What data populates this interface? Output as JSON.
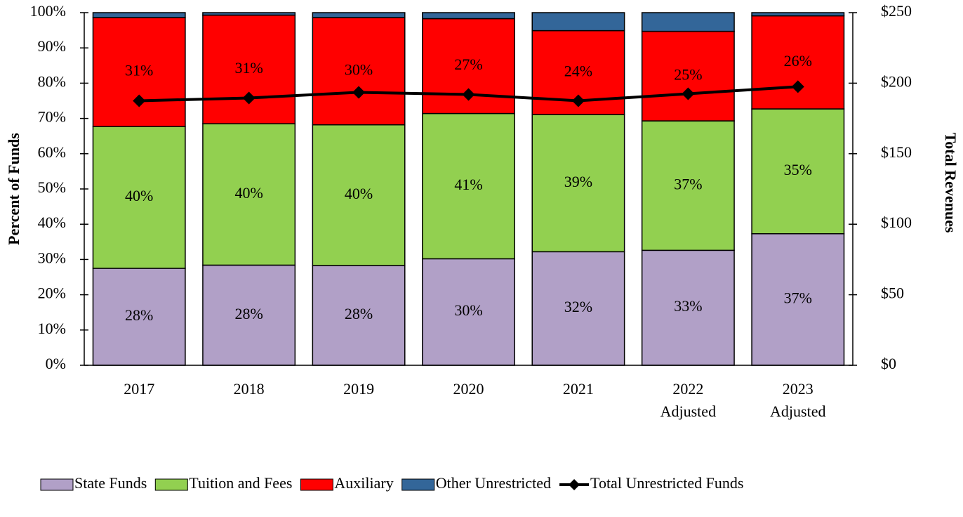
{
  "chart_data": {
    "type": "stacked_bar_line",
    "categories": [
      [
        "2017"
      ],
      [
        "2018"
      ],
      [
        "2019"
      ],
      [
        "2020"
      ],
      [
        "2021"
      ],
      [
        "2022",
        "Adjusted"
      ],
      [
        "2023",
        "Adjusted"
      ]
    ],
    "ylabel": "Percent of Funds",
    "y2label": "Total Revenues",
    "ylim": [
      0,
      100
    ],
    "yticks": [
      {
        "value": 0,
        "label": "0%"
      },
      {
        "value": 10,
        "label": "10%"
      },
      {
        "value": 20,
        "label": "20%"
      },
      {
        "value": 30,
        "label": "30%"
      },
      {
        "value": 40,
        "label": "40%"
      },
      {
        "value": 50,
        "label": "50%"
      },
      {
        "value": 60,
        "label": "60%"
      },
      {
        "value": 70,
        "label": "70%"
      },
      {
        "value": 80,
        "label": "80%"
      },
      {
        "value": 90,
        "label": "90%"
      },
      {
        "value": 100,
        "label": "100%"
      }
    ],
    "y2lim": [
      0,
      250
    ],
    "y2ticks": [
      {
        "value": 0,
        "label": "$0"
      },
      {
        "value": 50,
        "label": "$50"
      },
      {
        "value": 100,
        "label": "$100"
      },
      {
        "value": 150,
        "label": "$150"
      },
      {
        "value": 200,
        "label": "$200"
      },
      {
        "value": 250,
        "label": "$250"
      }
    ],
    "series": [
      {
        "name": "State Funds",
        "color": "#b1a0c7",
        "values": [
          27.5,
          28.4,
          28.3,
          30.2,
          32.2,
          32.6,
          37.3
        ],
        "value_labels": [
          "28%",
          "28%",
          "28%",
          "30%",
          "32%",
          "33%",
          "37%"
        ]
      },
      {
        "name": "Tuition and Fees",
        "color": "#92d050",
        "values": [
          40.2,
          40.1,
          39.9,
          41.2,
          38.9,
          36.7,
          35.4
        ],
        "value_labels": [
          "40%",
          "40%",
          "40%",
          "41%",
          "39%",
          "37%",
          "35%"
        ]
      },
      {
        "name": "Auxiliary",
        "color": "#ff0000",
        "values": [
          30.9,
          30.8,
          30.4,
          26.9,
          23.8,
          25.4,
          26.4
        ],
        "value_labels": [
          "31%",
          "31%",
          "30%",
          "27%",
          "24%",
          "25%",
          "26%"
        ]
      },
      {
        "name": "Other Unrestricted",
        "color": "#336699",
        "values": [
          1.4,
          0.7,
          1.4,
          1.7,
          5.1,
          5.3,
          0.9
        ]
      },
      {
        "name": "Total Unrestricted Funds",
        "type": "line",
        "axis": "y2",
        "color": "#000000",
        "values": [
          187.5,
          189.5,
          193.5,
          192,
          187.5,
          192.5,
          197.5
        ]
      }
    ]
  }
}
